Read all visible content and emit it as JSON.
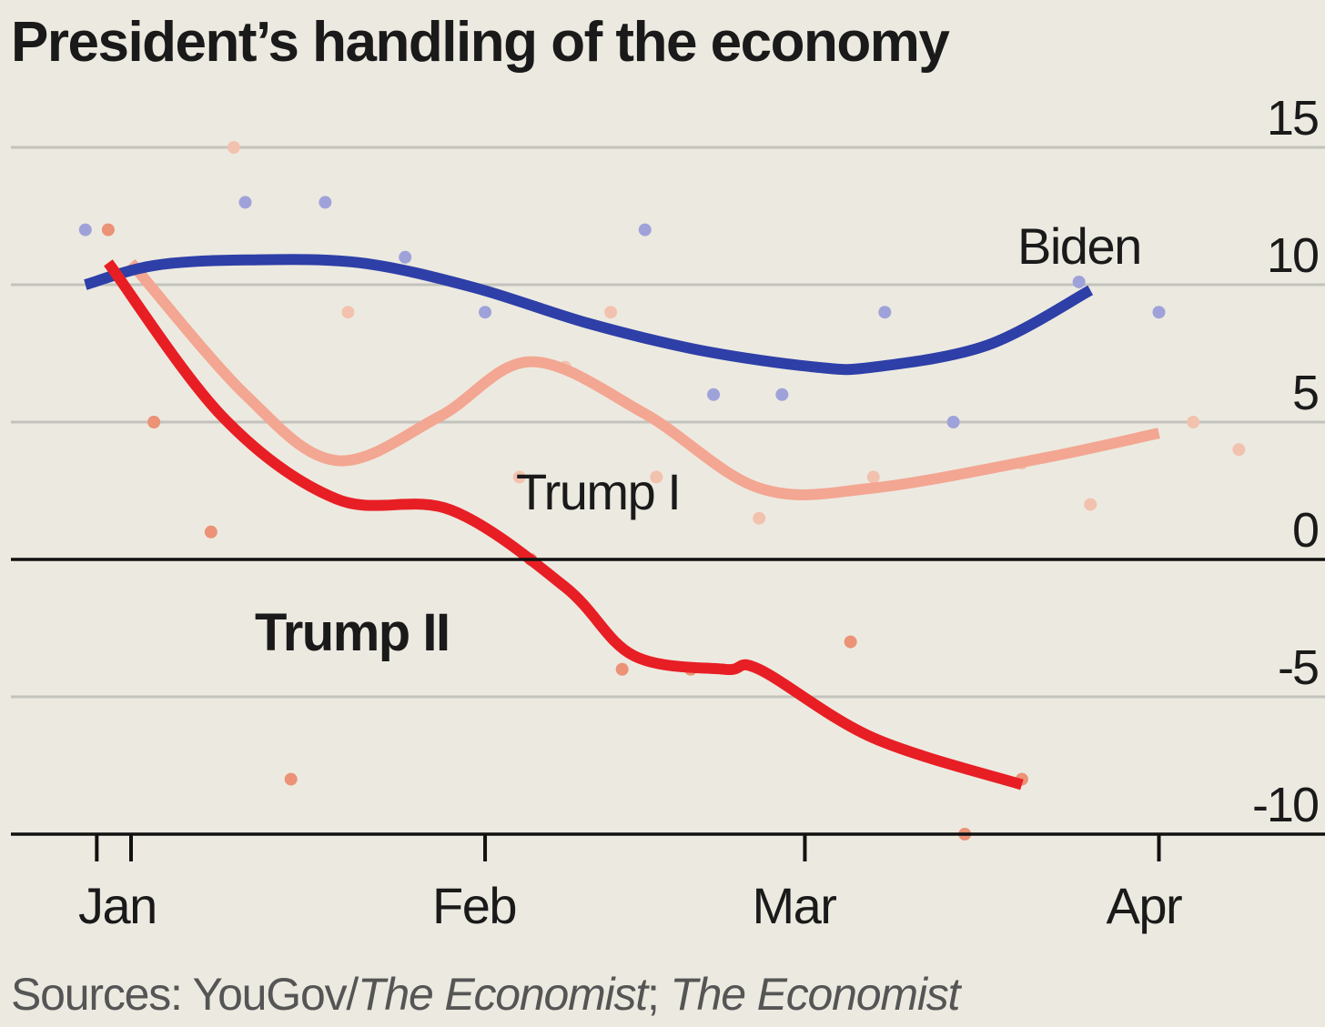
{
  "title": "President’s handling of the economy",
  "source": {
    "prefix": "Sources: YouGov/",
    "pub1": "The Economist",
    "sep": "; ",
    "pub2": "The Economist"
  },
  "chart_data": {
    "type": "line",
    "title": "President’s handling of the economy",
    "x_unit": "days since Jan 1",
    "ylim": [
      -10,
      15
    ],
    "yticks": [
      15,
      10,
      5,
      0,
      -5,
      -10
    ],
    "ytick_labels": [
      "15",
      "10",
      "5",
      "0",
      "-5",
      "-10"
    ],
    "xticks": [
      0,
      31,
      59,
      90
    ],
    "xtick_labels": [
      "Jan",
      "Feb",
      "Mar",
      "Apr"
    ],
    "x_tick_marks": [
      -3,
      0,
      31,
      59,
      90
    ],
    "grid": true,
    "colors": {
      "Biden": "#2E3FA8",
      "Trump I": "#F3A692",
      "Trump II": "#E81E25"
    },
    "series": [
      {
        "name": "Biden",
        "label_pos": "upper-right",
        "line": [
          [
            -4,
            10.0
          ],
          [
            2,
            10.7
          ],
          [
            10,
            10.9
          ],
          [
            20,
            10.8
          ],
          [
            30,
            9.9
          ],
          [
            40,
            8.6
          ],
          [
            50,
            7.6
          ],
          [
            60,
            7.0
          ],
          [
            65,
            7.0
          ],
          [
            75,
            7.8
          ],
          [
            84,
            9.8
          ]
        ],
        "points": [
          [
            -4,
            12
          ],
          [
            10,
            13
          ],
          [
            17,
            13
          ],
          [
            24,
            11
          ],
          [
            31,
            9
          ],
          [
            45,
            12
          ],
          [
            51,
            6
          ],
          [
            57,
            6
          ],
          [
            66,
            9
          ],
          [
            72,
            5
          ],
          [
            83,
            10.1
          ],
          [
            90,
            9
          ]
        ]
      },
      {
        "name": "Trump I",
        "label_pos": "middle",
        "line": [
          [
            0,
            10.8
          ],
          [
            10,
            6
          ],
          [
            18,
            3.6
          ],
          [
            27,
            5.2
          ],
          [
            35,
            7.2
          ],
          [
            45,
            5.3
          ],
          [
            55,
            2.6
          ],
          [
            65,
            2.6
          ],
          [
            80,
            3.7
          ],
          [
            90,
            4.6
          ]
        ],
        "points": [
          [
            -2,
            12
          ],
          [
            2,
            5
          ],
          [
            9,
            15
          ],
          [
            19,
            9
          ],
          [
            34,
            3
          ],
          [
            38,
            7
          ],
          [
            42,
            9
          ],
          [
            46,
            3
          ],
          [
            55,
            1.5
          ],
          [
            65,
            3
          ],
          [
            78,
            3.5
          ],
          [
            84,
            2
          ],
          [
            93,
            5
          ],
          [
            97,
            4
          ]
        ]
      },
      {
        "name": "Trump II",
        "label_pos": "lower-left",
        "line": [
          [
            -2,
            10.8
          ],
          [
            8,
            5.2
          ],
          [
            18,
            2.2
          ],
          [
            28,
            1.8
          ],
          [
            38,
            -1
          ],
          [
            44,
            -3.5
          ],
          [
            52,
            -4
          ],
          [
            55,
            -4
          ],
          [
            65,
            -6.5
          ],
          [
            78,
            -8.2
          ]
        ],
        "points": [
          [
            -2,
            12
          ],
          [
            2,
            5
          ],
          [
            7,
            1
          ],
          [
            14,
            -8
          ],
          [
            35,
            0
          ],
          [
            43,
            -4
          ],
          [
            49,
            -4
          ],
          [
            63,
            -3
          ],
          [
            73,
            -10
          ],
          [
            78,
            -8
          ]
        ]
      }
    ]
  }
}
